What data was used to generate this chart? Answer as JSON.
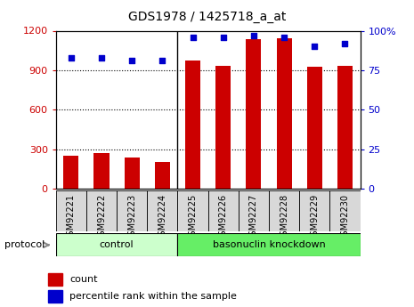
{
  "title": "GDS1978 / 1425718_a_at",
  "samples": [
    "GSM92221",
    "GSM92222",
    "GSM92223",
    "GSM92224",
    "GSM92225",
    "GSM92226",
    "GSM92227",
    "GSM92228",
    "GSM92229",
    "GSM92230"
  ],
  "count_values": [
    250,
    270,
    235,
    205,
    975,
    930,
    1135,
    1145,
    925,
    935
  ],
  "percentile_values": [
    83,
    83,
    81,
    81,
    96,
    96,
    97,
    96,
    90,
    92
  ],
  "groups": {
    "control": [
      0,
      1,
      2,
      3
    ],
    "basonuclin knockdown": [
      4,
      5,
      6,
      7,
      8,
      9
    ]
  },
  "bar_color": "#cc0000",
  "dot_color": "#0000cc",
  "left_ylim": [
    0,
    1200
  ],
  "right_ylim": [
    0,
    100
  ],
  "left_yticks": [
    0,
    300,
    600,
    900,
    1200
  ],
  "right_yticks": [
    0,
    25,
    50,
    75,
    100
  ],
  "right_yticklabels": [
    "0",
    "25",
    "50",
    "75",
    "100%"
  ],
  "grid_values": [
    300,
    600,
    900
  ],
  "control_color": "#ccffcc",
  "knockdown_color": "#66ee66",
  "xtick_bg_color": "#d8d8d8",
  "protocol_label": "protocol",
  "legend_count": "count",
  "legend_pct": "percentile rank within the sample"
}
